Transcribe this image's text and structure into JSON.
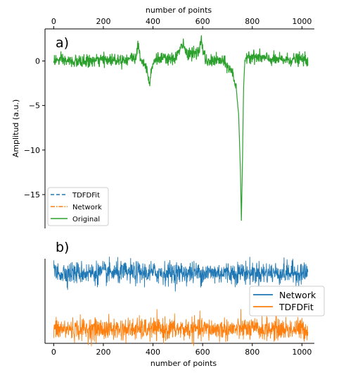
{
  "chart_data": [
    {
      "panel": "a)",
      "type": "line",
      "x_top_label": "number of points",
      "ylabel": "Amplitud (a.u.)",
      "xlim": [
        -35,
        1050
      ],
      "ylim": [
        -18.8,
        3.6
      ],
      "x_ticks": [
        0,
        200,
        400,
        600,
        800,
        1000
      ],
      "y_ticks": [
        0,
        -5,
        -10,
        -15
      ],
      "y_tick_labels": [
        "0",
        "−5",
        "−10",
        "−15"
      ],
      "legend": {
        "position": "lower-left",
        "entries": [
          "TDFDFit",
          "Network",
          "Original"
        ]
      },
      "series": [
        {
          "name": "TDFDFit",
          "color": "#1f77b4",
          "style": "dashed"
        },
        {
          "name": "Network",
          "color": "#ff7f0e",
          "style": "dashdot"
        },
        {
          "name": "Original",
          "color": "#2ca02c",
          "style": "solid"
        }
      ],
      "noise_std": 0.35,
      "key_points": [
        [
          0,
          0.1
        ],
        [
          100,
          -0.1
        ],
        [
          200,
          0.1
        ],
        [
          290,
          0.2
        ],
        [
          330,
          0.4
        ],
        [
          340,
          1.7
        ],
        [
          350,
          0.3
        ],
        [
          370,
          -0.5
        ],
        [
          380,
          -1.4
        ],
        [
          385,
          -2.6
        ],
        [
          392,
          -1.0
        ],
        [
          410,
          0.3
        ],
        [
          480,
          0.1
        ],
        [
          510,
          1.2
        ],
        [
          520,
          2.0
        ],
        [
          532,
          0.9
        ],
        [
          560,
          0.9
        ],
        [
          575,
          0.7
        ],
        [
          588,
          1.4
        ],
        [
          595,
          2.5
        ],
        [
          602,
          1.0
        ],
        [
          620,
          -0.3
        ],
        [
          640,
          0.1
        ],
        [
          680,
          0.0
        ],
        [
          700,
          -0.6
        ],
        [
          720,
          -1.3
        ],
        [
          735,
          -3.0
        ],
        [
          745,
          -6.0
        ],
        [
          752,
          -12.0
        ],
        [
          756,
          -18.0
        ],
        [
          760,
          -12.0
        ],
        [
          765,
          -3.0
        ],
        [
          770,
          0.0
        ],
        [
          780,
          0.7
        ],
        [
          800,
          0.5
        ],
        [
          900,
          0.1
        ],
        [
          1000,
          0.2
        ],
        [
          1024,
          0.1
        ]
      ]
    },
    {
      "panel": "b)",
      "type": "line",
      "xlabel": "number of points",
      "xlim": [
        -35,
        1050
      ],
      "x_ticks": [
        0,
        200,
        400,
        600,
        800,
        1000
      ],
      "y_axis_ticks": "none",
      "legend": {
        "position": "right",
        "entries": [
          "Network",
          "TDFDFit"
        ]
      },
      "series": [
        {
          "name": "Network",
          "color": "#1f77b4",
          "level": 1.0,
          "noise_std": 0.1
        },
        {
          "name": "TDFDFit",
          "color": "#ff7f0e",
          "level": 0.0,
          "noise_std": 0.1
        }
      ],
      "spike_at": 760,
      "ylim": [
        -0.25,
        1.25
      ]
    }
  ]
}
